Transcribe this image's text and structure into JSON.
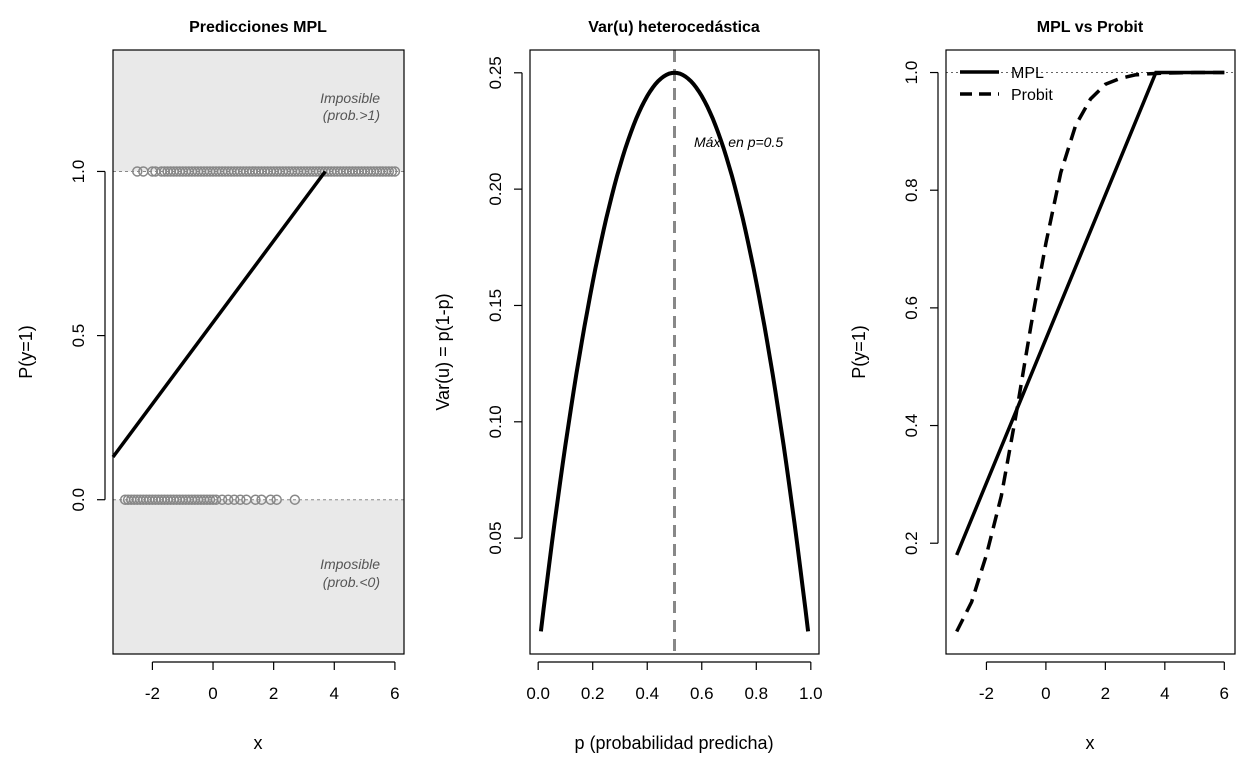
{
  "chart_data": [
    {
      "type": "line",
      "title": "Predicciones MPL",
      "xlabel": "x",
      "ylabel": "P(y=1)",
      "xlim": [
        -3.3,
        6.3
      ],
      "ylim": [
        -0.47,
        1.37
      ],
      "xticks": [
        -2,
        0,
        2,
        4,
        6
      ],
      "yticks": [
        0.0,
        0.5,
        1.0
      ],
      "xtick_labels": [
        "-2",
        "0",
        "2",
        "4",
        "6"
      ],
      "ytick_labels": [
        "0.0",
        "0.5",
        "1.0"
      ],
      "shaded_regions": [
        {
          "y_from": 1.0,
          "y_to": 1.37,
          "label_line1": "Imposible",
          "label_line2": "(prob.>1)"
        },
        {
          "y_from": -0.47,
          "y_to": 0.0,
          "label_line1": "Imposible",
          "label_line2": "(prob.<0)"
        }
      ],
      "reference_lines": [
        0.0,
        1.0
      ],
      "series": [
        {
          "name": "MPL",
          "x": [
            -3.3,
            3.7
          ],
          "y": [
            0.13,
            1.0
          ]
        }
      ],
      "points_y1": [
        -2.5,
        -2.3,
        -2.0,
        -1.9,
        -1.7,
        -1.6,
        -1.5,
        -1.4,
        -1.3,
        -1.2,
        -1.1,
        -1.0,
        -0.9,
        -0.8,
        -0.7,
        -0.6,
        -0.5,
        -0.4,
        -0.3,
        -0.2,
        -0.1,
        0.0,
        0.1,
        0.2,
        0.3,
        0.4,
        0.5,
        0.6,
        0.7,
        0.8,
        0.9,
        1.0,
        1.1,
        1.2,
        1.3,
        1.4,
        1.5,
        1.6,
        1.7,
        1.8,
        1.9,
        2.0,
        2.1,
        2.2,
        2.3,
        2.4,
        2.5,
        2.6,
        2.7,
        2.8,
        2.9,
        3.0,
        3.1,
        3.2,
        3.3,
        3.4,
        3.5,
        3.6,
        3.7,
        3.8,
        3.9,
        4.0,
        4.1,
        4.2,
        4.3,
        4.4,
        4.5,
        4.6,
        4.7,
        4.8,
        4.9,
        5.0,
        5.1,
        5.2,
        5.3,
        5.4,
        5.5,
        5.6,
        5.7,
        5.8,
        5.9,
        6.0
      ],
      "points_y0": [
        -2.9,
        -2.8,
        -2.7,
        -2.6,
        -2.5,
        -2.4,
        -2.3,
        -2.2,
        -2.1,
        -2.0,
        -1.9,
        -1.8,
        -1.7,
        -1.6,
        -1.5,
        -1.4,
        -1.3,
        -1.2,
        -1.1,
        -1.0,
        -0.9,
        -0.8,
        -0.7,
        -0.6,
        -0.5,
        -0.4,
        -0.3,
        -0.2,
        -0.1,
        0.0,
        0.1,
        0.3,
        0.5,
        0.7,
        0.9,
        1.1,
        1.4,
        1.6,
        1.9,
        2.1,
        2.7
      ]
    },
    {
      "type": "line",
      "title": "Var(u) heterocedástica",
      "xlabel": "p (probabilidad predicha)",
      "ylabel": "Var(u) = p(1-p)",
      "xlim": [
        -0.03,
        1.03
      ],
      "ylim": [
        0.0002,
        0.2598
      ],
      "xticks": [
        0.0,
        0.2,
        0.4,
        0.6,
        0.8,
        1.0
      ],
      "yticks": [
        0.05,
        0.1,
        0.15,
        0.2,
        0.25
      ],
      "xtick_labels": [
        "0.0",
        "0.2",
        "0.4",
        "0.6",
        "0.8",
        "1.0"
      ],
      "ytick_labels": [
        "0.05",
        "0.10",
        "0.15",
        "0.20",
        "0.25"
      ],
      "vline": 0.5,
      "annotation": "Máx. en p=0.5",
      "series": [
        {
          "name": "Var(u)",
          "function": "p*(1-p)",
          "p_range": [
            0.01,
            0.99
          ]
        }
      ]
    },
    {
      "type": "line",
      "title": "MPL vs Probit",
      "xlabel": "x",
      "ylabel": "P(y=1)",
      "xlim": [
        -3.36,
        6.36
      ],
      "ylim": [
        0.0117,
        1.0383
      ],
      "xticks": [
        -2,
        0,
        2,
        4,
        6
      ],
      "yticks": [
        0.2,
        0.4,
        0.6,
        0.8,
        1.0
      ],
      "xtick_labels": [
        "-2",
        "0",
        "2",
        "4",
        "6"
      ],
      "ytick_labels": [
        "0.2",
        "0.4",
        "0.6",
        "0.8",
        "1.0"
      ],
      "reference_lines": [
        1.0
      ],
      "legend": {
        "position": "top-left",
        "entries": [
          "MPL",
          "Probit"
        ]
      },
      "series": [
        {
          "name": "MPL",
          "style": "solid",
          "x": [
            -3.0,
            3.7,
            6.0
          ],
          "y": [
            0.18,
            1.0,
            1.0
          ]
        },
        {
          "name": "Probit",
          "style": "dashed",
          "x": [
            -3.0,
            -2.5,
            -2.0,
            -1.5,
            -1.0,
            -0.5,
            0.0,
            0.5,
            1.0,
            1.5,
            2.0,
            2.5,
            3.0,
            3.5,
            4.0,
            5.0,
            6.0
          ],
          "y": [
            0.05,
            0.1,
            0.18,
            0.28,
            0.42,
            0.57,
            0.71,
            0.83,
            0.91,
            0.955,
            0.98,
            0.99,
            0.996,
            0.998,
            0.999,
            1.0,
            1.0
          ]
        }
      ]
    }
  ]
}
